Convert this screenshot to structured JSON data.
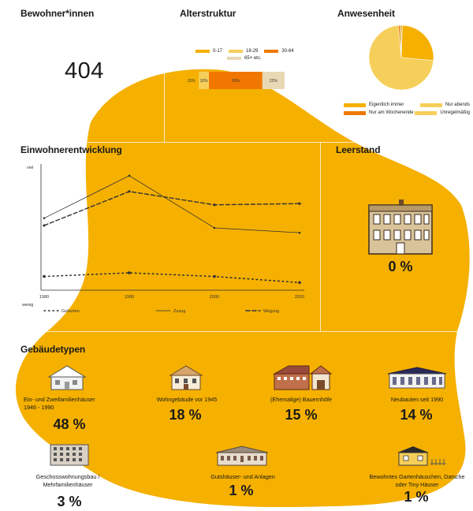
{
  "colors": {
    "accent": "#f5b000",
    "orange": "#f07800",
    "light_yellow": "#f6cf5a",
    "beige": "#e8d8b4",
    "dark": "#333333"
  },
  "bewohner": {
    "title": "Bewohner*innen",
    "value": "404"
  },
  "alterstruktur": {
    "title": "Alterstruktur",
    "legend": [
      "0-17",
      "18-29",
      "30-64",
      "65+ etc."
    ],
    "segments": [
      {
        "label": "15%",
        "value": 15,
        "color": "#f5b000"
      },
      {
        "label": "10%",
        "value": 10,
        "color": "#f6cf5a"
      },
      {
        "label": "53%",
        "value": 53,
        "color": "#f07800"
      },
      {
        "label": "22%",
        "value": 22,
        "color": "#e8d8b4"
      }
    ]
  },
  "anwesenheit": {
    "title": "Anwesenheit",
    "legend": [
      "Eigentlich immer",
      "Nur abends",
      "Nur am Wochenende",
      "Unregelmäßig"
    ]
  },
  "einwohnerentwicklung": {
    "title": "Einwohnerentwicklung",
    "y_top": "viel",
    "y_bottom": "wenig",
    "legend": [
      "Geburten",
      "Zuzug",
      "Wegzug"
    ]
  },
  "chart_data": [
    {
      "type": "bar",
      "title": "Alterstruktur",
      "stacked": true,
      "categories": [
        "Alterstruktur"
      ],
      "series": [
        {
          "name": "0-17",
          "values": [
            15
          ]
        },
        {
          "name": "18-29",
          "values": [
            10
          ]
        },
        {
          "name": "30-64",
          "values": [
            53
          ]
        },
        {
          "name": "65+ etc.",
          "values": [
            22
          ]
        }
      ]
    },
    {
      "type": "pie",
      "title": "Anwesenheit",
      "labels": [
        "Eigentlich immer",
        "Nur abends",
        "Nur am Wochenende",
        "Unregelmäßig"
      ],
      "values": [
        26,
        72,
        1,
        1
      ]
    },
    {
      "type": "line",
      "title": "Einwohnerentwicklung",
      "x": [
        1980,
        1990,
        2000,
        2010
      ],
      "ylim": [
        0,
        100
      ],
      "series": [
        {
          "name": "Zuzug",
          "values": [
            58,
            93,
            50,
            46
          ]
        },
        {
          "name": "Wegzug",
          "values": [
            52,
            80,
            69,
            70
          ]
        },
        {
          "name": "Geburten",
          "values": [
            10,
            13,
            10,
            5
          ]
        }
      ]
    }
  ],
  "leerstand": {
    "title": "Leerstand",
    "value": "0 %"
  },
  "gebaeudetypen": {
    "title": "Gebäudetypen",
    "items": [
      {
        "label": "Ein- und Zweifamilienhäuser 1946 - 1990",
        "value": "48 %"
      },
      {
        "label": "Wohngebäude vor 1945",
        "value": "18 %"
      },
      {
        "label": "(Ehemalige) Bauernhöfe",
        "value": "15 %"
      },
      {
        "label": "Neubauten seit 1990",
        "value": "14 %"
      },
      {
        "label": "Geschosswohnungsbau / Mehrfamilienhäuser",
        "value": "3 %"
      },
      {
        "label": "Gutshäuser- und Anlagen",
        "value": "1 %"
      },
      {
        "label": "Bewohntes Gartenhäuschen, Datsche oder Tiny Häuser",
        "value": "1 %"
      }
    ]
  }
}
